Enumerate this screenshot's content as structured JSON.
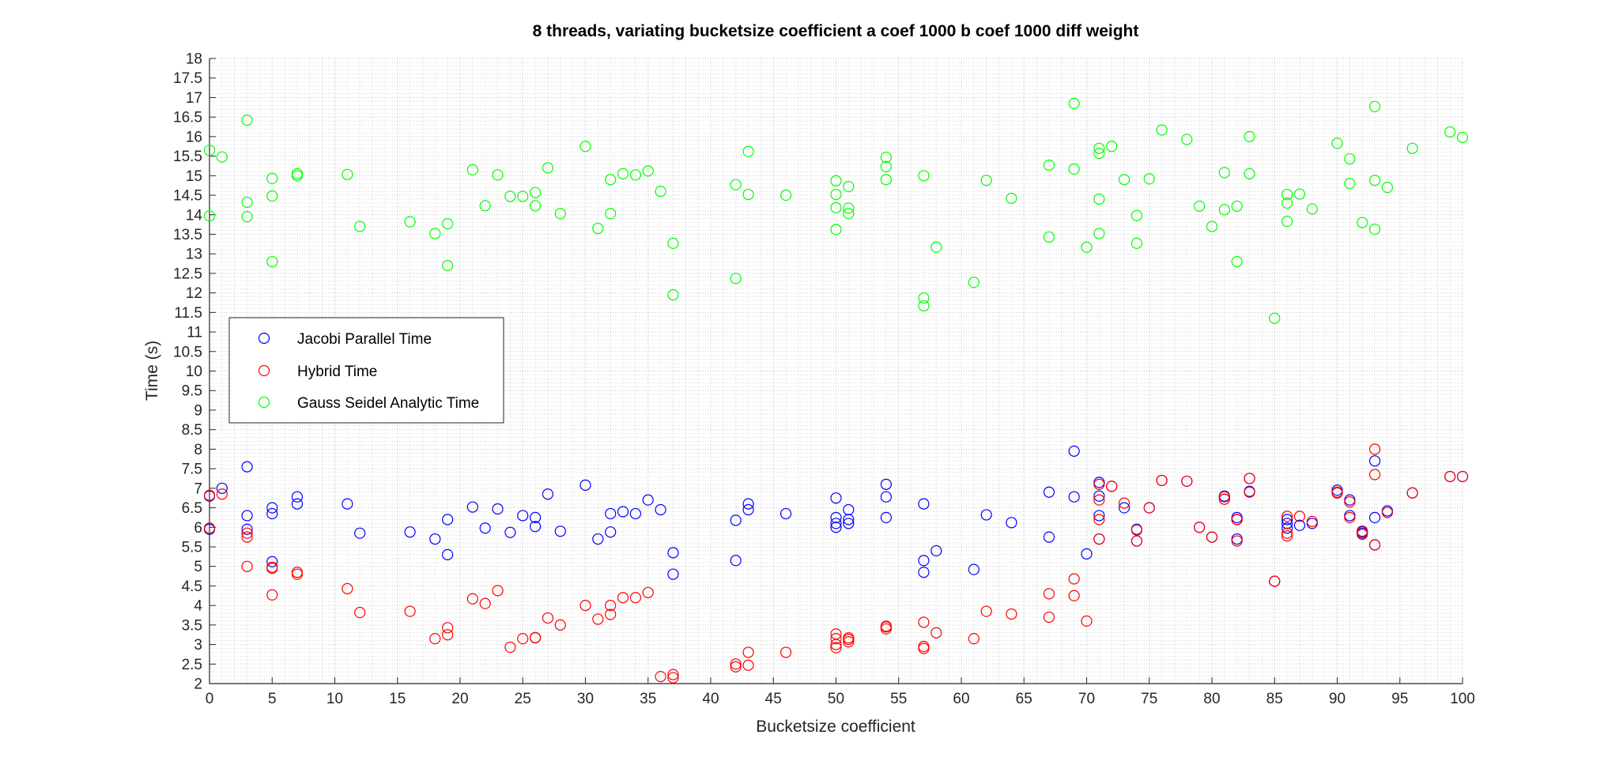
{
  "chart_data": {
    "type": "scatter",
    "title": "8 threads, variating bucketsize coefficient a coef 1000 b coef 1000 diff weight",
    "xlabel": "Bucketsize coefficient",
    "ylabel": "Time (s)",
    "xlim": [
      0,
      100
    ],
    "ylim": [
      2,
      18
    ],
    "xticks": [
      "0",
      "5",
      "10",
      "15",
      "20",
      "25",
      "30",
      "35",
      "40",
      "45",
      "50",
      "55",
      "60",
      "65",
      "70",
      "75",
      "80",
      "85",
      "90",
      "95",
      "100"
    ],
    "yticks": [
      "2",
      "2.5",
      "3",
      "3.5",
      "4",
      "4.5",
      "5",
      "5.5",
      "6",
      "6.5",
      "7",
      "7.5",
      "8",
      "8.5",
      "9",
      "9.5",
      "10",
      "10.5",
      "11",
      "11.5",
      "12",
      "12.5",
      "13",
      "13.5",
      "14",
      "14.5",
      "15",
      "15.5",
      "16",
      "16.5",
      "17",
      "17.5",
      "18"
    ],
    "grid": true,
    "minor_grid": true,
    "legend_position": "middle-left",
    "series": [
      {
        "name": "Jacobi Parallel Time",
        "color": "#0000ff",
        "x": [
          0,
          0,
          1,
          3,
          3,
          3,
          5,
          5,
          5,
          7,
          7,
          11,
          12,
          16,
          18,
          19,
          19,
          21,
          22,
          23,
          24,
          25,
          26,
          26,
          27,
          28,
          30,
          31,
          32,
          32,
          33,
          34,
          35,
          36,
          37,
          37,
          42,
          42,
          43,
          43,
          46,
          50,
          50,
          50,
          50,
          51,
          51,
          51,
          54,
          54,
          54,
          57,
          57,
          57,
          58,
          61,
          62,
          64,
          67,
          67,
          69,
          69,
          70,
          71,
          71,
          71,
          71,
          72,
          73,
          74,
          74,
          75,
          76,
          78,
          79,
          80,
          81,
          81,
          82,
          82,
          82,
          83,
          83,
          85,
          86,
          86,
          86,
          87,
          88,
          90,
          90,
          91,
          91,
          92,
          92,
          93,
          93,
          93,
          94,
          96,
          99,
          100
        ],
        "y": [
          6.8,
          5.95,
          7.0,
          7.55,
          6.3,
          5.95,
          6.5,
          6.35,
          5.12,
          6.78,
          6.6,
          6.6,
          5.85,
          5.88,
          5.7,
          6.2,
          5.3,
          6.52,
          5.98,
          6.47,
          5.87,
          6.3,
          6.25,
          6.02,
          6.85,
          5.9,
          7.08,
          5.7,
          6.35,
          5.88,
          6.4,
          6.35,
          6.7,
          6.45,
          5.35,
          4.8,
          6.18,
          5.15,
          6.6,
          6.45,
          6.35,
          6.75,
          6.25,
          6.1,
          6.0,
          6.45,
          6.2,
          6.1,
          7.1,
          6.78,
          6.25,
          6.6,
          5.15,
          4.85,
          5.4,
          4.92,
          6.32,
          6.12,
          6.9,
          5.75,
          7.95,
          6.78,
          5.32,
          7.15,
          6.3,
          6.8,
          5.7,
          7.05,
          6.5,
          5.95,
          5.65,
          6.5,
          7.2,
          7.18,
          6.0,
          5.75,
          6.8,
          6.72,
          6.25,
          6.2,
          5.7,
          7.25,
          6.92,
          4.62,
          6.1,
          6.2,
          5.98,
          6.05,
          6.1,
          6.95,
          6.88,
          6.7,
          6.3,
          5.85,
          5.9,
          7.7,
          6.25,
          5.55,
          6.42,
          6.88,
          7.3,
          7.3
        ]
      },
      {
        "name": "Hybrid Time",
        "color": "#ff0000",
        "x": [
          0,
          0,
          1,
          3,
          3,
          3,
          5,
          5,
          5,
          7,
          7,
          11,
          12,
          16,
          18,
          19,
          19,
          21,
          22,
          23,
          24,
          25,
          26,
          26,
          27,
          28,
          30,
          31,
          32,
          32,
          33,
          34,
          35,
          36,
          37,
          37,
          42,
          42,
          43,
          43,
          46,
          50,
          50,
          50,
          50,
          51,
          51,
          51,
          54,
          54,
          54,
          57,
          57,
          57,
          58,
          61,
          62,
          64,
          67,
          67,
          69,
          69,
          70,
          71,
          71,
          71,
          71,
          72,
          73,
          74,
          74,
          75,
          76,
          78,
          79,
          80,
          81,
          81,
          82,
          82,
          82,
          83,
          83,
          85,
          86,
          86,
          86,
          87,
          88,
          90,
          90,
          91,
          91,
          92,
          92,
          93,
          93,
          93,
          94,
          96,
          99,
          100
        ],
        "y": [
          6.82,
          5.98,
          6.85,
          5.85,
          5.75,
          5.0,
          4.98,
          4.95,
          4.27,
          4.85,
          4.8,
          4.43,
          3.82,
          3.85,
          3.15,
          3.43,
          3.25,
          4.17,
          4.05,
          4.38,
          2.93,
          3.15,
          3.18,
          3.17,
          3.68,
          3.5,
          4.0,
          3.65,
          4.0,
          3.77,
          4.2,
          4.2,
          4.33,
          2.18,
          2.23,
          2.15,
          2.5,
          2.43,
          2.8,
          2.47,
          2.8,
          3.27,
          3.15,
          3.0,
          2.92,
          3.17,
          3.13,
          3.07,
          3.47,
          3.45,
          3.4,
          3.57,
          2.95,
          2.9,
          3.3,
          3.15,
          3.85,
          3.78,
          4.3,
          3.7,
          4.68,
          4.25,
          3.6,
          7.1,
          6.7,
          6.2,
          5.7,
          7.05,
          6.62,
          5.93,
          5.65,
          6.5,
          7.2,
          7.18,
          6.0,
          5.75,
          6.78,
          6.72,
          6.2,
          6.2,
          5.65,
          7.25,
          6.9,
          4.62,
          6.28,
          5.85,
          5.78,
          6.28,
          6.15,
          6.9,
          6.88,
          6.65,
          6.25,
          5.88,
          5.82,
          8.0,
          7.35,
          5.55,
          6.38,
          6.88,
          7.3,
          7.3
        ]
      },
      {
        "name": "Gauss Seidel Analytic Time",
        "color": "#00ff00",
        "x": [
          0,
          0,
          1,
          3,
          3,
          3,
          5,
          5,
          5,
          7,
          7,
          11,
          12,
          16,
          18,
          19,
          19,
          21,
          22,
          23,
          24,
          25,
          26,
          26,
          27,
          28,
          30,
          31,
          32,
          32,
          33,
          34,
          35,
          36,
          37,
          37,
          42,
          42,
          43,
          43,
          46,
          50,
          50,
          50,
          50,
          51,
          51,
          51,
          54,
          54,
          54,
          57,
          57,
          57,
          58,
          61,
          62,
          64,
          67,
          67,
          69,
          69,
          70,
          71,
          71,
          71,
          71,
          72,
          73,
          74,
          74,
          75,
          76,
          78,
          79,
          80,
          81,
          81,
          82,
          82,
          83,
          83,
          85,
          86,
          86,
          86,
          87,
          88,
          90,
          91,
          91,
          92,
          93,
          93,
          93,
          94,
          96,
          99,
          100
        ],
        "y": [
          15.65,
          13.97,
          15.48,
          16.42,
          14.32,
          13.95,
          14.93,
          14.48,
          12.8,
          15.05,
          15.0,
          15.03,
          13.7,
          13.82,
          13.52,
          13.77,
          12.7,
          15.15,
          14.23,
          15.02,
          14.47,
          14.47,
          14.57,
          14.23,
          15.2,
          14.03,
          15.75,
          13.65,
          14.9,
          14.03,
          15.05,
          15.02,
          15.12,
          14.6,
          13.27,
          11.95,
          14.77,
          12.37,
          15.62,
          14.52,
          14.5,
          14.87,
          14.52,
          14.18,
          13.62,
          14.72,
          14.17,
          14.03,
          15.47,
          15.23,
          14.9,
          15.0,
          11.87,
          11.67,
          13.17,
          12.27,
          14.88,
          14.42,
          15.27,
          13.43,
          16.85,
          15.17,
          13.17,
          15.7,
          15.57,
          14.4,
          13.52,
          15.75,
          14.9,
          13.98,
          13.27,
          14.92,
          16.17,
          15.93,
          14.22,
          13.7,
          15.08,
          14.13,
          14.22,
          12.8,
          16.0,
          15.05,
          11.35,
          14.52,
          14.3,
          13.83,
          14.53,
          14.15,
          15.83,
          15.43,
          14.8,
          13.8,
          16.77,
          14.88,
          13.63,
          14.7,
          15.7,
          16.12,
          15.98
        ]
      }
    ]
  }
}
